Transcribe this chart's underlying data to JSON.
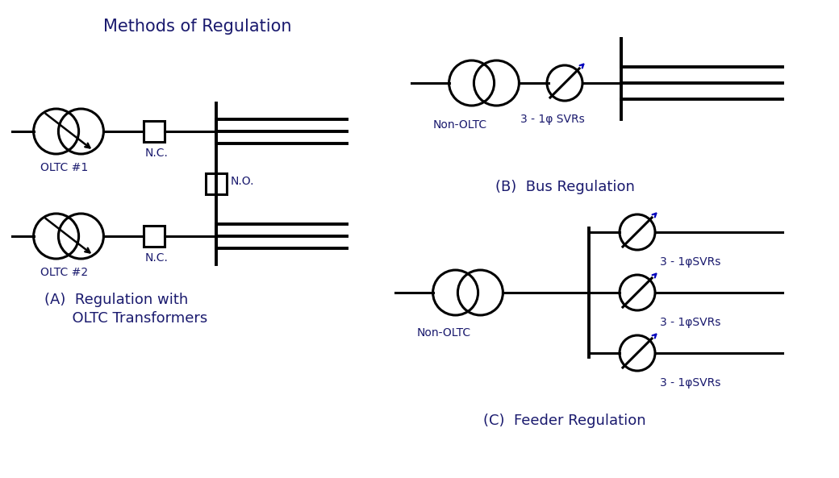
{
  "title": "Methods of Regulation",
  "title_color": "#1a1a6e",
  "title_fontsize": 15,
  "background_color": "#ffffff",
  "line_color": "#000000",
  "label_color": "#1a1a6e",
  "arrow_color_blue": "#0000bb",
  "arrow_color_black": "#000000",
  "label_A_line1": "(A)  Regulation with",
  "label_A_line2": "      OLTC Transformers",
  "label_B": "(B)  Bus Regulation",
  "label_C": "(C)  Feeder Regulation",
  "label_fontsize": 13,
  "symbol_fontsize": 10,
  "lw": 2.2,
  "lw_bus": 2.8
}
